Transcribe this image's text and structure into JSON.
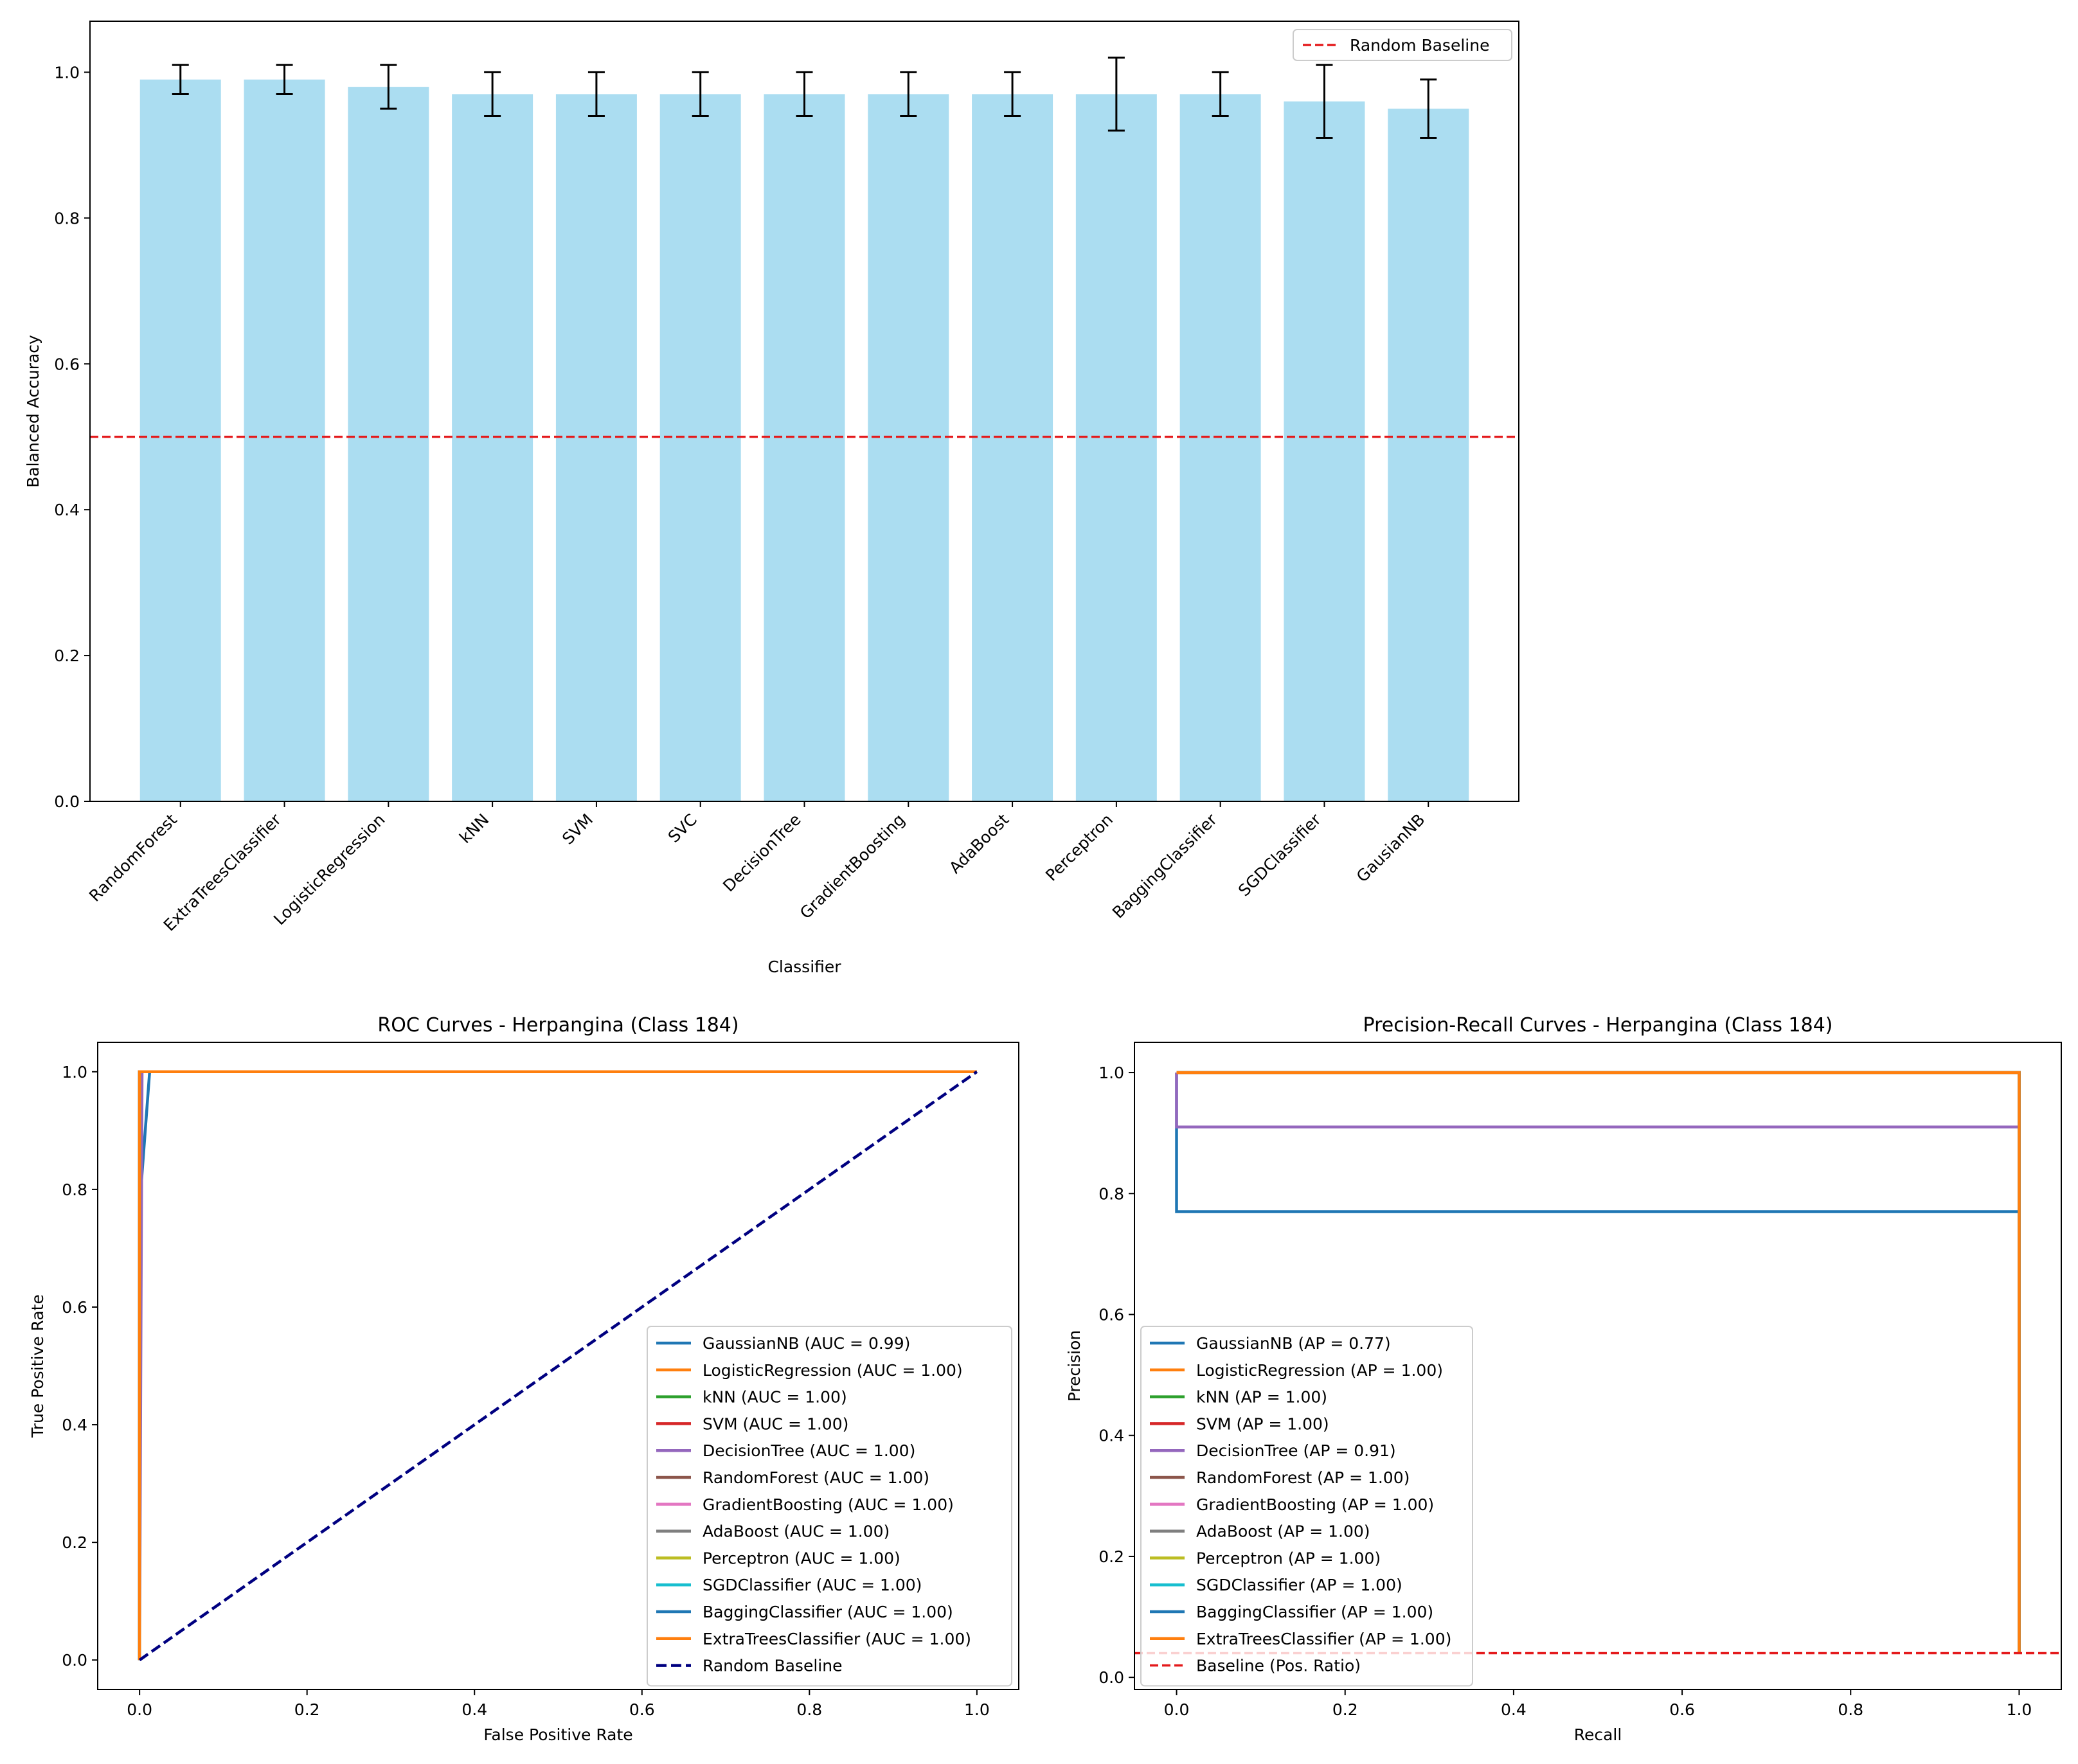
{
  "colors": {
    "bar_fill": "#87ceeb",
    "bar_opacity": 0.7,
    "baseline_red": "#e41a1c",
    "random_navy": "#000080",
    "tab": [
      "#1f77b4",
      "#ff7f0e",
      "#2ca02c",
      "#d62728",
      "#9467bd",
      "#8c564b",
      "#e377c2",
      "#7f7f7f",
      "#bcbd22",
      "#17becf",
      "#1f77b4",
      "#ff7f0e"
    ]
  },
  "chart_data": [
    {
      "id": "bar",
      "type": "bar",
      "title": "",
      "xlabel": "Classifier",
      "ylabel": "Balanced Accuracy",
      "ylim": [
        0,
        1.07
      ],
      "yticks": [
        0.0,
        0.2,
        0.4,
        0.6,
        0.8,
        1.0
      ],
      "ytick_labels": [
        "0.0",
        "0.2",
        "0.4",
        "0.6",
        "0.8",
        "1.0"
      ],
      "categories": [
        "RandomForest",
        "ExtraTreesClassifier",
        "LogisticRegression",
        "kNN",
        "SVM",
        "SVC",
        "DecisionTree",
        "GradientBoosting",
        "AdaBoost",
        "Perceptron",
        "BaggingClassifier",
        "SGDClassifier",
        "GausianNB"
      ],
      "values": [
        0.99,
        0.99,
        0.98,
        0.97,
        0.97,
        0.97,
        0.97,
        0.97,
        0.97,
        0.97,
        0.97,
        0.96,
        0.95
      ],
      "errors": [
        0.02,
        0.02,
        0.03,
        0.03,
        0.03,
        0.03,
        0.03,
        0.03,
        0.03,
        0.05,
        0.03,
        0.05,
        0.04
      ],
      "baseline": {
        "label": "Random Baseline",
        "value": 0.5
      },
      "legend_position": "top-right"
    },
    {
      "id": "roc",
      "type": "line",
      "title": "ROC Curves - Herpangina (Class 184)",
      "xlabel": "False Positive Rate",
      "ylabel": "True Positive Rate",
      "xlim": [
        -0.05,
        1.05
      ],
      "ylim": [
        -0.05,
        1.05
      ],
      "xticks": [
        0.0,
        0.2,
        0.4,
        0.6,
        0.8,
        1.0
      ],
      "yticks": [
        0.0,
        0.2,
        0.4,
        0.6,
        0.8,
        1.0
      ],
      "tick_labels": [
        "0.0",
        "0.2",
        "0.4",
        "0.6",
        "0.8",
        "1.0"
      ],
      "series": [
        {
          "name": "GaussianNB (AUC = 0.99)",
          "x": [
            0,
            0,
            0.012,
            1
          ],
          "y": [
            0,
            0.77,
            1,
            1
          ]
        },
        {
          "name": "LogisticRegression (AUC = 1.00)",
          "x": [
            0,
            0,
            1
          ],
          "y": [
            0,
            1,
            1
          ]
        },
        {
          "name": "kNN (AUC = 1.00)",
          "x": [
            0,
            0,
            1
          ],
          "y": [
            0,
            1,
            1
          ]
        },
        {
          "name": "SVM (AUC = 1.00)",
          "x": [
            0,
            0,
            1
          ],
          "y": [
            0,
            1,
            1
          ]
        },
        {
          "name": "DecisionTree (AUC = 1.00)",
          "x": [
            0,
            0.003,
            1
          ],
          "y": [
            0,
            1,
            1
          ]
        },
        {
          "name": "RandomForest (AUC = 1.00)",
          "x": [
            0,
            0,
            1
          ],
          "y": [
            0,
            1,
            1
          ]
        },
        {
          "name": "GradientBoosting (AUC = 1.00)",
          "x": [
            0,
            0,
            1
          ],
          "y": [
            0,
            1,
            1
          ]
        },
        {
          "name": "AdaBoost (AUC = 1.00)",
          "x": [
            0,
            0,
            1
          ],
          "y": [
            0,
            1,
            1
          ]
        },
        {
          "name": "Perceptron (AUC = 1.00)",
          "x": [
            0,
            0,
            1
          ],
          "y": [
            0,
            1,
            1
          ]
        },
        {
          "name": "SGDClassifier (AUC = 1.00)",
          "x": [
            0,
            0,
            1
          ],
          "y": [
            0,
            1,
            1
          ]
        },
        {
          "name": "BaggingClassifier (AUC = 1.00)",
          "x": [
            0,
            0,
            1
          ],
          "y": [
            0,
            1,
            1
          ]
        },
        {
          "name": "ExtraTreesClassifier (AUC = 1.00)",
          "x": [
            0,
            0,
            1
          ],
          "y": [
            0,
            1,
            1
          ]
        }
      ],
      "reference": {
        "name": "Random Baseline",
        "x": [
          0,
          1
        ],
        "y": [
          0,
          1
        ]
      },
      "legend_position": "lower-right"
    },
    {
      "id": "pr",
      "type": "line",
      "title": "Precision-Recall Curves - Herpangina (Class 184)",
      "xlabel": "Recall",
      "ylabel": "Precision",
      "xlim": [
        -0.05,
        1.05
      ],
      "ylim": [
        -0.02,
        1.05
      ],
      "xticks": [
        0.0,
        0.2,
        0.4,
        0.6,
        0.8,
        1.0
      ],
      "yticks": [
        0.0,
        0.2,
        0.4,
        0.6,
        0.8,
        1.0
      ],
      "tick_labels": [
        "0.0",
        "0.2",
        "0.4",
        "0.6",
        "0.8",
        "1.0"
      ],
      "series": [
        {
          "name": "GaussianNB (AP = 0.77)",
          "x": [
            0,
            0,
            1,
            1
          ],
          "y": [
            1,
            0.77,
            0.77,
            0.04
          ]
        },
        {
          "name": "LogisticRegression (AP = 1.00)",
          "x": [
            0,
            1,
            1
          ],
          "y": [
            1,
            1,
            0.04
          ]
        },
        {
          "name": "kNN (AP = 1.00)",
          "x": [
            0,
            1,
            1
          ],
          "y": [
            1,
            1,
            0.04
          ]
        },
        {
          "name": "SVM (AP = 1.00)",
          "x": [
            0,
            1,
            1
          ],
          "y": [
            1,
            1,
            0.04
          ]
        },
        {
          "name": "DecisionTree (AP = 0.91)",
          "x": [
            0,
            0,
            1,
            1
          ],
          "y": [
            1,
            0.91,
            0.91,
            0.04
          ]
        },
        {
          "name": "RandomForest (AP = 1.00)",
          "x": [
            0,
            1,
            1
          ],
          "y": [
            1,
            1,
            0.04
          ]
        },
        {
          "name": "GradientBoosting (AP = 1.00)",
          "x": [
            0,
            1,
            1
          ],
          "y": [
            1,
            1,
            0.04
          ]
        },
        {
          "name": "AdaBoost (AP = 1.00)",
          "x": [
            0,
            1,
            1
          ],
          "y": [
            1,
            1,
            0.04
          ]
        },
        {
          "name": "Perceptron (AP = 1.00)",
          "x": [
            0,
            1,
            1
          ],
          "y": [
            1,
            1,
            0.04
          ]
        },
        {
          "name": "SGDClassifier (AP = 1.00)",
          "x": [
            0,
            1,
            1
          ],
          "y": [
            1,
            1,
            0.04
          ]
        },
        {
          "name": "BaggingClassifier (AP = 1.00)",
          "x": [
            0,
            1,
            1
          ],
          "y": [
            1,
            1,
            0.04
          ]
        },
        {
          "name": "ExtraTreesClassifier (AP = 1.00)",
          "x": [
            0,
            1,
            1
          ],
          "y": [
            1,
            1,
            0.04
          ]
        }
      ],
      "reference": {
        "name": "Baseline (Pos. Ratio)",
        "value": 0.04
      },
      "legend_position": "lower-left"
    }
  ]
}
